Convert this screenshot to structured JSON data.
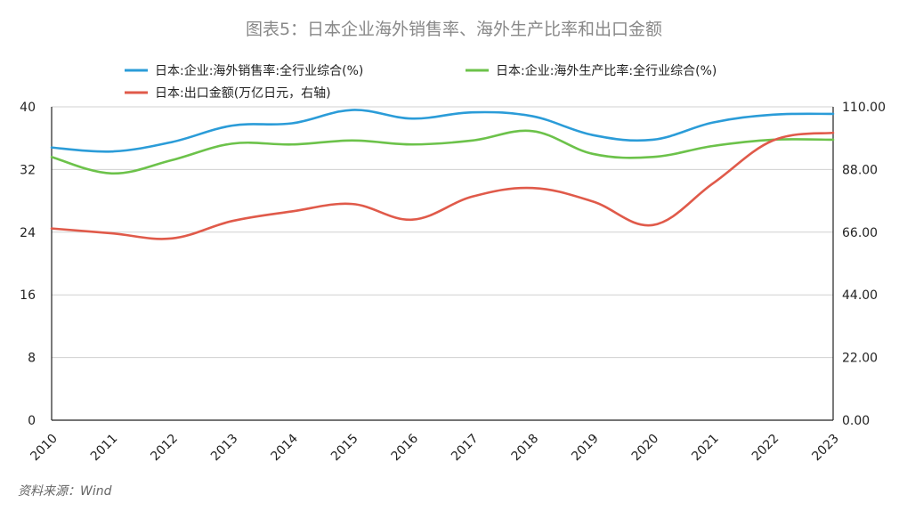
{
  "chart_data": {
    "type": "line",
    "title": "图表5：日本企业海外销售率、海外生产比率和出口金额",
    "source": "资料来源：Wind",
    "categories": [
      "2010",
      "2011",
      "2012",
      "2013",
      "2014",
      "2015",
      "2016",
      "2017",
      "2018",
      "2019",
      "2020",
      "2021",
      "2022",
      "2023"
    ],
    "y_left": {
      "ticks": [
        "40",
        "32",
        "24",
        "16",
        "8",
        "0"
      ],
      "ylim": [
        0,
        40
      ]
    },
    "y_right": {
      "ticks": [
        "110.00",
        "88.00",
        "66.00",
        "44.00",
        "22.00",
        "0.00"
      ],
      "ylim": [
        0,
        110
      ]
    },
    "grid": true,
    "legend_position": "top",
    "series": [
      {
        "name": "日本:企业:海外销售率:全行业综合(%)",
        "axis": "left",
        "color": "#2b9cd8",
        "values": [
          34.8,
          34.3,
          35.5,
          37.6,
          37.9,
          39.6,
          38.5,
          39.3,
          38.8,
          36.4,
          35.8,
          38.0,
          39.0,
          39.1
        ]
      },
      {
        "name": "日本:企业:海外生产比率:全行业综合(%)",
        "axis": "left",
        "color": "#6cc24a",
        "values": [
          33.6,
          31.5,
          33.2,
          35.3,
          35.2,
          35.7,
          35.2,
          35.7,
          36.9,
          34.0,
          33.6,
          35.0,
          35.8,
          35.8
        ]
      },
      {
        "name": "日本:出口金额(万亿日元，右轴)",
        "axis": "right",
        "color": "#e05a4a",
        "values": [
          67.3,
          65.6,
          63.8,
          69.9,
          73.3,
          75.9,
          70.4,
          78.5,
          81.5,
          76.8,
          68.5,
          83.1,
          98.2,
          100.9
        ]
      }
    ]
  }
}
